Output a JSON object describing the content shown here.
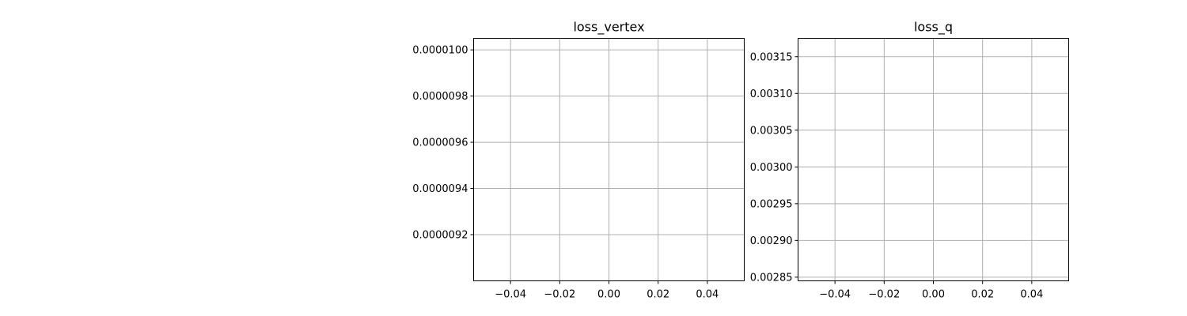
{
  "chart_data": [
    {
      "type": "line",
      "title": "loss_vertex",
      "xlabel": "",
      "ylabel": "",
      "xlim": [
        -0.055,
        0.055
      ],
      "ylim": [
        9e-06,
        1.005e-05
      ],
      "xticks": [
        -0.04,
        -0.02,
        0.0,
        0.02,
        0.04
      ],
      "xtick_labels": [
        "−0.04",
        "−0.02",
        "0.00",
        "0.02",
        "0.04"
      ],
      "yticks": [
        9.2e-06,
        9.4e-06,
        9.6e-06,
        9.8e-06,
        1e-05
      ],
      "ytick_labels": [
        "0.0000092",
        "0.0000094",
        "0.0000096",
        "0.0000098",
        "0.0000100"
      ],
      "grid": true,
      "series": []
    },
    {
      "type": "line",
      "title": "loss_q",
      "xlabel": "",
      "ylabel": "",
      "xlim": [
        -0.055,
        0.055
      ],
      "ylim": [
        0.002845,
        0.003175
      ],
      "xticks": [
        -0.04,
        -0.02,
        0.0,
        0.02,
        0.04
      ],
      "xtick_labels": [
        "−0.04",
        "−0.02",
        "0.00",
        "0.02",
        "0.04"
      ],
      "yticks": [
        0.00285,
        0.0029,
        0.00295,
        0.003,
        0.00305,
        0.0031,
        0.00315
      ],
      "ytick_labels": [
        "0.00285",
        "0.00290",
        "0.00295",
        "0.00300",
        "0.00305",
        "0.00310",
        "0.00315"
      ],
      "grid": true,
      "series": []
    }
  ]
}
